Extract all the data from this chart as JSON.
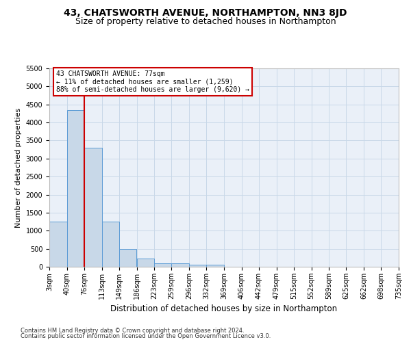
{
  "title": "43, CHATSWORTH AVENUE, NORTHAMPTON, NN3 8JD",
  "subtitle": "Size of property relative to detached houses in Northampton",
  "xlabel": "Distribution of detached houses by size in Northampton",
  "ylabel": "Number of detached properties",
  "bin_edges": [
    3,
    40,
    76,
    113,
    149,
    186,
    223,
    259,
    296,
    332,
    369,
    406,
    442,
    479,
    515,
    552,
    589,
    625,
    662,
    698,
    735
  ],
  "bar_heights": [
    1250,
    4350,
    3300,
    1250,
    490,
    220,
    90,
    90,
    60,
    60,
    0,
    0,
    0,
    0,
    0,
    0,
    0,
    0,
    0,
    0
  ],
  "bar_color": "#c8d8e8",
  "bar_edgecolor": "#5b9bd5",
  "vline_x": 76,
  "vline_color": "#cc0000",
  "annotation_line1": "43 CHATSWORTH AVENUE: 77sqm",
  "annotation_line2": "← 11% of detached houses are smaller (1,259)",
  "annotation_line3": "88% of semi-detached houses are larger (9,620) →",
  "annotation_box_edgecolor": "#cc0000",
  "annotation_box_facecolor": "#ffffff",
  "ylim": [
    0,
    5500
  ],
  "yticks": [
    0,
    500,
    1000,
    1500,
    2000,
    2500,
    3000,
    3500,
    4000,
    4500,
    5000,
    5500
  ],
  "footer1": "Contains HM Land Registry data © Crown copyright and database right 2024.",
  "footer2": "Contains public sector information licensed under the Open Government Licence v3.0.",
  "bg_color": "#ffffff",
  "ax_bg_color": "#eaf0f8",
  "grid_color": "#c8d8e8",
  "title_fontsize": 10,
  "subtitle_fontsize": 9,
  "ylabel_fontsize": 8,
  "xlabel_fontsize": 8.5,
  "tick_fontsize": 7,
  "annotation_fontsize": 7,
  "footer_fontsize": 6
}
